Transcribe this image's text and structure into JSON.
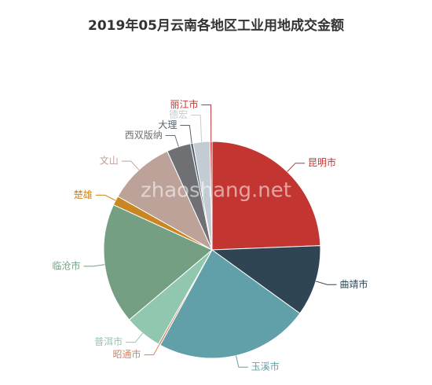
{
  "chart_data": {
    "type": "pie",
    "title": "2019年05月云南各地区工业用地成交金额",
    "watermark": "zhaoshang.net",
    "categories": [
      "昆明市",
      "曲靖市",
      "玉溪市",
      "昭通市",
      "普洱市",
      "临沧市",
      "楚雄",
      "文山",
      "西双版纳",
      "大理",
      "德宏",
      "丽江市"
    ],
    "values": [
      24.4,
      10.6,
      23,
      0.3,
      5.6,
      18,
      1.4,
      10,
      3.6,
      0.4,
      2.5,
      0.3
    ],
    "colors": [
      "#c23531",
      "#2f4554",
      "#61a0a8",
      "#d48265",
      "#91c7ae",
      "#749f83",
      "#ca8622",
      "#bda29a",
      "#6e7074",
      "#546570",
      "#c4ccd3",
      "#c23531"
    ]
  }
}
